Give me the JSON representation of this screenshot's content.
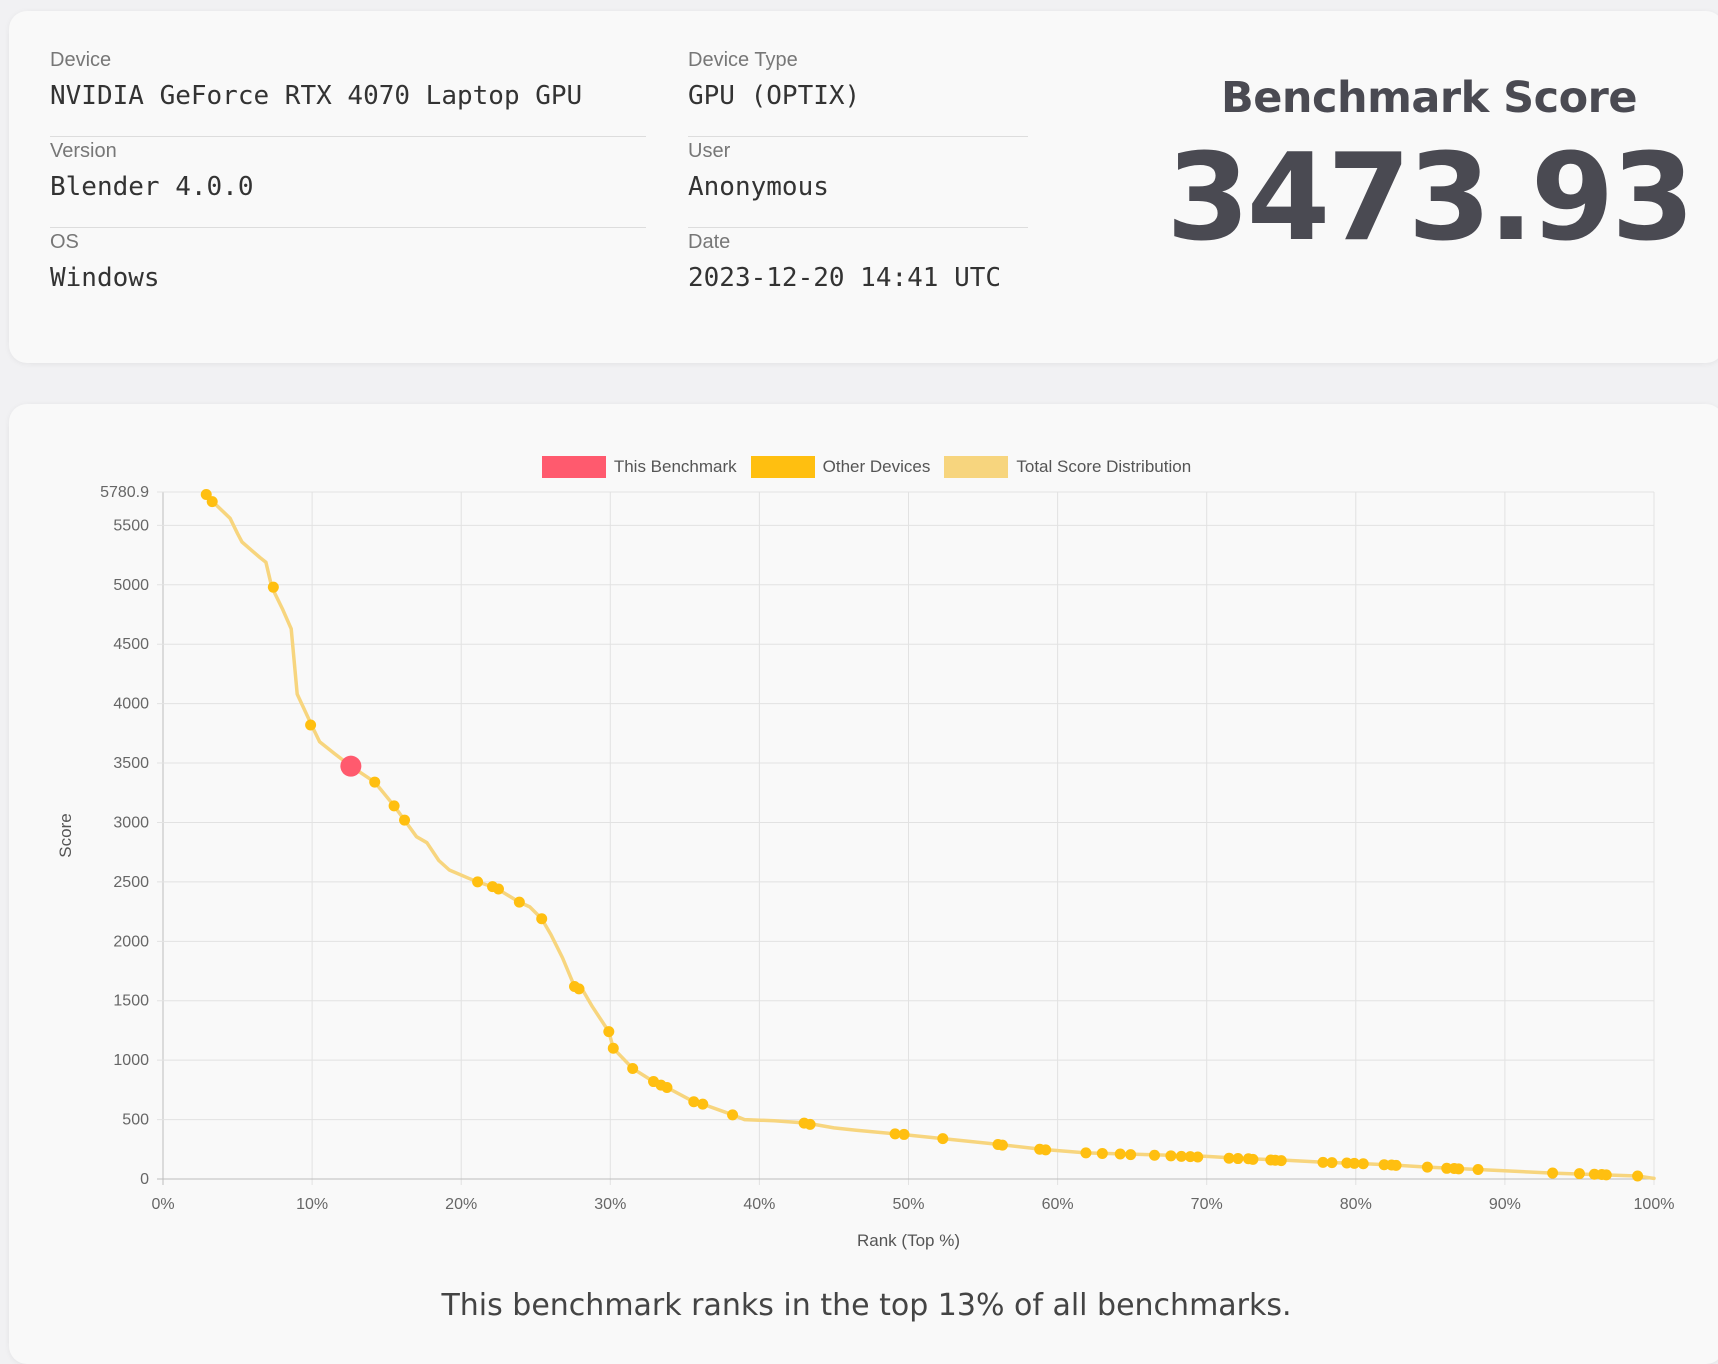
{
  "info": {
    "device_label": "Device",
    "device_value": "NVIDIA GeForce RTX 4070 Laptop GPU",
    "device_type_label": "Device Type",
    "device_type_value": "GPU (OPTIX)",
    "version_label": "Version",
    "version_value": "Blender 4.0.0",
    "user_label": "User",
    "user_value": "Anonymous",
    "os_label": "OS",
    "os_value": "Windows",
    "date_label": "Date",
    "date_value": "2023-12-20 14:41 UTC"
  },
  "score": {
    "title": "Benchmark Score",
    "value": "3473.93"
  },
  "summary": "This benchmark ranks in the top 13% of all benchmarks.",
  "colors": {
    "this_benchmark": "#ff5a6e",
    "other_devices": "#ffbf10",
    "distribution": "#f7d57e"
  },
  "chart_data": {
    "type": "scatter",
    "legend": [
      "This Benchmark",
      "Other Devices",
      "Total Score Distribution"
    ],
    "legend_position": "top-center",
    "xlabel": "Rank (Top %)",
    "ylabel": "Score",
    "xlim": [
      0,
      100
    ],
    "ylim": [
      0,
      5780.9
    ],
    "x_ticks": [
      "0%",
      "10%",
      "20%",
      "30%",
      "40%",
      "50%",
      "60%",
      "70%",
      "80%",
      "90%",
      "100%"
    ],
    "y_ticks": [
      "0",
      "500",
      "1000",
      "1500",
      "2000",
      "2500",
      "3000",
      "3500",
      "4000",
      "4500",
      "5000",
      "5500",
      "5780.9"
    ],
    "grid": true,
    "this_benchmark": {
      "x": 12.6,
      "y": 3473.93
    },
    "distribution": [
      [
        2.9,
        5760
      ],
      [
        3.5,
        5680
      ],
      [
        4.5,
        5560
      ],
      [
        5.0,
        5430
      ],
      [
        5.3,
        5360
      ],
      [
        6.5,
        5230
      ],
      [
        6.9,
        5190
      ],
      [
        7.3,
        4980
      ],
      [
        8.0,
        4800
      ],
      [
        8.6,
        4630
      ],
      [
        9.0,
        4080
      ],
      [
        10.0,
        3810
      ],
      [
        10.5,
        3680
      ],
      [
        11.5,
        3580
      ],
      [
        12.6,
        3474
      ],
      [
        14.2,
        3340
      ],
      [
        15.5,
        3140
      ],
      [
        16.2,
        3020
      ],
      [
        17.0,
        2880
      ],
      [
        17.7,
        2830
      ],
      [
        18.5,
        2680
      ],
      [
        19.2,
        2600
      ],
      [
        20.5,
        2530
      ],
      [
        21.1,
        2500
      ],
      [
        22.3,
        2450
      ],
      [
        23.9,
        2330
      ],
      [
        24.6,
        2290
      ],
      [
        25.4,
        2190
      ],
      [
        26.0,
        2060
      ],
      [
        26.8,
        1860
      ],
      [
        27.6,
        1620
      ],
      [
        28.1,
        1600
      ],
      [
        28.8,
        1450
      ],
      [
        29.9,
        1240
      ],
      [
        30.2,
        1100
      ],
      [
        31.5,
        930
      ],
      [
        32.9,
        820
      ],
      [
        33.8,
        770
      ],
      [
        35.6,
        650
      ],
      [
        36.2,
        630
      ],
      [
        38.2,
        540
      ],
      [
        39.0,
        500
      ],
      [
        41.0,
        490
      ],
      [
        43.2,
        470
      ],
      [
        45.0,
        430
      ],
      [
        46.5,
        410
      ],
      [
        49.1,
        380
      ],
      [
        52.3,
        340
      ],
      [
        56.1,
        290
      ],
      [
        58.9,
        250
      ],
      [
        61.9,
        220
      ],
      [
        64.5,
        210
      ],
      [
        67.6,
        200
      ],
      [
        70.0,
        190
      ],
      [
        72.1,
        175
      ],
      [
        75.0,
        160
      ],
      [
        78.0,
        140
      ],
      [
        80.4,
        130
      ],
      [
        82.1,
        120
      ],
      [
        84.8,
        100
      ],
      [
        88.2,
        80
      ],
      [
        93.2,
        50
      ],
      [
        96.4,
        35
      ],
      [
        98.9,
        25
      ],
      [
        100,
        5
      ]
    ],
    "other_devices": [
      [
        2.9,
        5760
      ],
      [
        3.3,
        5700
      ],
      [
        7.4,
        4980
      ],
      [
        9.9,
        3820
      ],
      [
        14.2,
        3340
      ],
      [
        15.5,
        3140
      ],
      [
        16.2,
        3020
      ],
      [
        21.1,
        2500
      ],
      [
        22.1,
        2460
      ],
      [
        22.5,
        2440
      ],
      [
        23.9,
        2330
      ],
      [
        25.4,
        2190
      ],
      [
        27.6,
        1620
      ],
      [
        27.9,
        1600
      ],
      [
        29.9,
        1240
      ],
      [
        30.2,
        1100
      ],
      [
        31.5,
        930
      ],
      [
        32.9,
        820
      ],
      [
        33.4,
        790
      ],
      [
        33.8,
        770
      ],
      [
        35.6,
        650
      ],
      [
        36.2,
        630
      ],
      [
        38.2,
        540
      ],
      [
        43.0,
        470
      ],
      [
        43.4,
        460
      ],
      [
        49.1,
        380
      ],
      [
        49.7,
        375
      ],
      [
        52.3,
        340
      ],
      [
        56.0,
        290
      ],
      [
        56.3,
        285
      ],
      [
        58.8,
        250
      ],
      [
        59.2,
        245
      ],
      [
        61.9,
        220
      ],
      [
        63.0,
        215
      ],
      [
        64.2,
        210
      ],
      [
        64.9,
        205
      ],
      [
        66.5,
        200
      ],
      [
        67.6,
        195
      ],
      [
        68.3,
        190
      ],
      [
        68.9,
        188
      ],
      [
        69.4,
        185
      ],
      [
        71.5,
        175
      ],
      [
        72.1,
        172
      ],
      [
        72.8,
        170
      ],
      [
        73.1,
        165
      ],
      [
        74.3,
        160
      ],
      [
        74.6,
        158
      ],
      [
        75.0,
        155
      ],
      [
        77.8,
        140
      ],
      [
        78.4,
        138
      ],
      [
        79.4,
        135
      ],
      [
        79.9,
        132
      ],
      [
        80.5,
        128
      ],
      [
        81.9,
        120
      ],
      [
        82.4,
        118
      ],
      [
        82.7,
        115
      ],
      [
        84.8,
        100
      ],
      [
        86.1,
        90
      ],
      [
        86.6,
        88
      ],
      [
        86.9,
        85
      ],
      [
        88.2,
        80
      ],
      [
        93.2,
        50
      ],
      [
        95.0,
        45
      ],
      [
        96.0,
        40
      ],
      [
        96.5,
        38
      ],
      [
        96.8,
        35
      ],
      [
        98.9,
        25
      ]
    ]
  }
}
